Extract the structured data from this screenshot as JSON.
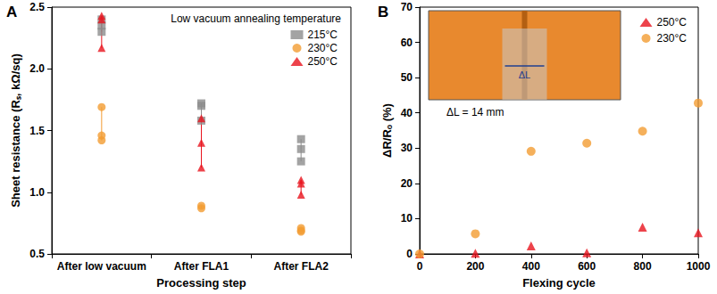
{
  "chart_data": [
    {
      "type": "scatter",
      "title": "A",
      "x_label": "Processing step",
      "y_label": "Sheet resistance (Rₛ, kΩ/sq)",
      "legend_title": "Low vacuum annealing temperature",
      "legend": "upper right",
      "grid": false,
      "categories": [
        "After low vacuum",
        "After FLA1",
        "After FLA2"
      ],
      "series": [
        {
          "name": "215°C",
          "color": "#8c8c8c",
          "marker": "square",
          "line_style": "solid",
          "values": [
            [
              2.4,
              2.35,
              2.3
            ],
            [
              1.72,
              1.7,
              1.58
            ],
            [
              1.43,
              1.35,
              1.25
            ]
          ]
        },
        {
          "name": "230°C",
          "color": "#f39c32",
          "marker": "circle",
          "line_style": "solid",
          "values": [
            [
              1.69,
              1.46,
              1.42
            ],
            [
              0.89,
              0.87
            ],
            [
              0.71,
              0.69,
              0.68
            ]
          ]
        },
        {
          "name": "250°C",
          "color": "#e8141e",
          "marker": "triangle",
          "line_style": "solid",
          "values": [
            [
              2.43,
              2.4,
              2.17
            ],
            [
              1.6,
              1.4,
              1.2
            ],
            [
              1.1,
              1.07,
              0.98
            ]
          ]
        }
      ],
      "ylim": [
        0.5,
        2.5
      ],
      "yticks": [
        {
          "value": 0.5,
          "label": "0.5"
        },
        {
          "value": 1.0,
          "label": "1.0"
        },
        {
          "value": 1.5,
          "label": "1.5"
        },
        {
          "value": 2.0,
          "label": "2.0"
        },
        {
          "value": 2.5,
          "label": "2.5"
        }
      ]
    },
    {
      "type": "scatter",
      "title": "B",
      "x_label": "Flexing cycle",
      "y_label": "ΔR/Rₒ (%)",
      "legend": "upper right",
      "grid": false,
      "annotations": [
        "ΔL",
        "ΔL = 14 mm"
      ],
      "x": [
        0,
        200,
        400,
        600,
        800,
        1000
      ],
      "series": [
        {
          "name": "250°C",
          "color": "#e8141e",
          "marker": "triangle",
          "values": [
            0,
            0.2,
            2.3,
            0.3,
            7.6,
            6.0
          ]
        },
        {
          "name": "230°C",
          "color": "#f39c32",
          "marker": "circle",
          "values": [
            0,
            5.7,
            29.1,
            31.4,
            34.8,
            42.8
          ]
        }
      ],
      "xlim": [
        0,
        1000
      ],
      "xticks": [
        0,
        200,
        400,
        600,
        800,
        1000
      ],
      "ylim": [
        0,
        70
      ],
      "yticks": [
        0,
        10,
        20,
        30,
        40,
        50,
        60,
        70
      ]
    }
  ]
}
